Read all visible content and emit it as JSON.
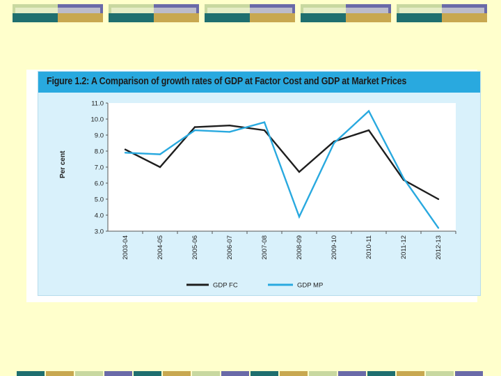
{
  "colors": {
    "background": "#ffffcc",
    "deco_light": "#c8d8a0",
    "deco_purple": "#6a6aa8",
    "deco_teal": "#1f6f6f",
    "deco_gold": "#c8a850",
    "header": "#29a9df",
    "plot_bg": "#ffffff",
    "series_fc": "#1e1e1e",
    "series_mp": "#29a9df"
  },
  "figure": {
    "title": "Figure 1.2:   A Comparison of growth rates of GDP at Factor Cost and GDP at Market Prices"
  },
  "chart_data": {
    "type": "line",
    "ylabel": "Per cent",
    "xlabel": "",
    "ylim": [
      3.0,
      11.0
    ],
    "yticks": [
      "3.0",
      "4.0",
      "5.0",
      "6.0",
      "7.0",
      "8.0",
      "9.0",
      "10.0",
      "11.0"
    ],
    "categories": [
      "2003-04",
      "2004-05",
      "2005-06",
      "2006-07",
      "2007-08",
      "2008-09",
      "2009-10",
      "2010-11",
      "2011-12",
      "2012-13"
    ],
    "series": [
      {
        "name": "GDP FC",
        "color": "#1e1e1e",
        "values": [
          8.1,
          7.0,
          9.5,
          9.6,
          9.3,
          6.7,
          8.6,
          9.3,
          6.2,
          5.0
        ]
      },
      {
        "name": "GDP MP",
        "color": "#29a9df",
        "values": [
          7.9,
          7.8,
          9.3,
          9.2,
          9.8,
          3.9,
          8.5,
          10.5,
          6.3,
          3.2
        ]
      }
    ],
    "grid": false,
    "legend_position": "bottom"
  }
}
